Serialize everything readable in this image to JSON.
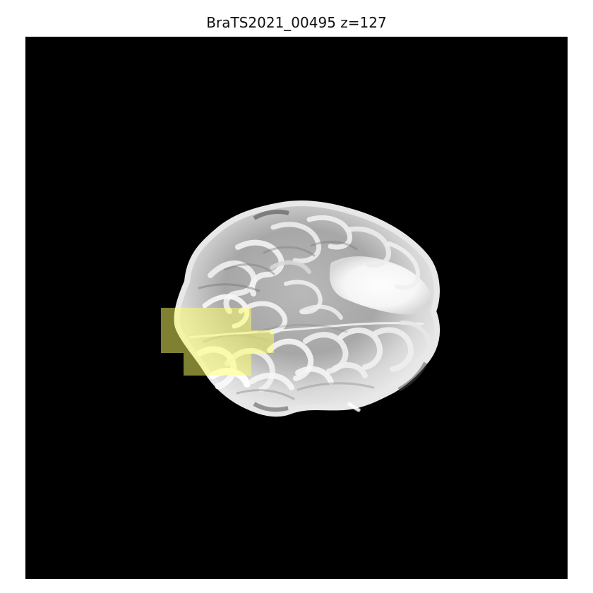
{
  "figure": {
    "title": "BraTS2021_00495 z=127",
    "background_color": "#000000",
    "overlay_color": "#ffff66",
    "overlay_opacity": 0.5
  },
  "image": {
    "content": "axial brain MRI slice with yellow segmentation mask"
  }
}
